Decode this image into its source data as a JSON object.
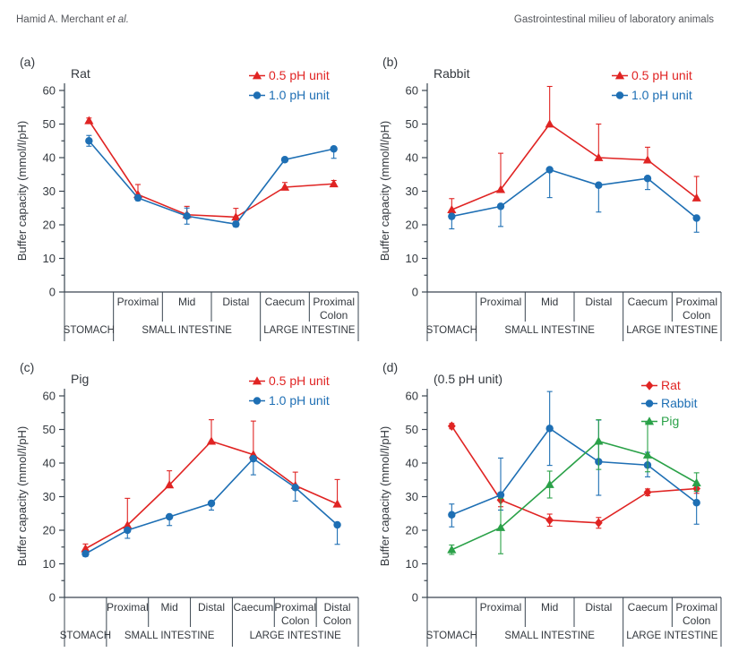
{
  "header": {
    "left_author": "Hamid A. Merchant ",
    "left_etal": "et al.",
    "right": "Gastrointestinal milieu of laboratory animals"
  },
  "colors": {
    "red": "#e02423",
    "blue": "#1e6fb4",
    "green": "#2aa148",
    "axis": "#3a4550",
    "text": "#34393f",
    "header_text": "#55575c"
  },
  "y_axis": {
    "label": "Buffer capacity (mmol/l/pH)",
    "min": 0,
    "max": 60,
    "major_step": 10,
    "minor_step": 5
  },
  "chart_data": [
    {
      "id": "a",
      "letter": "(a)",
      "title": "Rat",
      "type": "line",
      "cell_labels": [
        "",
        "Proximal",
        "Mid",
        "Distal",
        "Caecum",
        "Proximal\nColon"
      ],
      "full_boundaries": [
        0,
        1,
        4,
        6
      ],
      "groups": [
        {
          "label": "STOMACH",
          "from": 0,
          "to": 0
        },
        {
          "label": "SMALL INTESTINE",
          "from": 1,
          "to": 3
        },
        {
          "label": "LARGE INTESTINE",
          "from": 4,
          "to": 5
        }
      ],
      "series": [
        {
          "name": "0.5 pH unit",
          "color": "red",
          "marker": "triangle",
          "values": [
            51,
            29,
            23,
            22.3,
            31.2,
            32.2
          ],
          "err_up": [
            0.8,
            3,
            2.5,
            2.6,
            1.4,
            1
          ],
          "err_down": [
            0.8,
            0,
            0,
            0,
            0,
            0
          ]
        },
        {
          "name": "1.0 pH unit",
          "color": "blue",
          "marker": "circle",
          "values": [
            45,
            28,
            22.6,
            20.2,
            39.4,
            42.6
          ],
          "err_up": [
            1.6,
            0.8,
            2.4,
            0.8,
            0,
            0.5
          ],
          "err_down": [
            1.6,
            0.8,
            2.4,
            0.8,
            0,
            2.8
          ]
        }
      ]
    },
    {
      "id": "b",
      "letter": "(b)",
      "title": "Rabbit",
      "type": "line",
      "cell_labels": [
        "",
        "Proximal",
        "Mid",
        "Distal",
        "Caecum",
        "Proximal\nColon"
      ],
      "full_boundaries": [
        0,
        1,
        4,
        6
      ],
      "groups": [
        {
          "label": "STOMACH",
          "from": 0,
          "to": 0
        },
        {
          "label": "SMALL INTESTINE",
          "from": 1,
          "to": 3
        },
        {
          "label": "LARGE INTESTINE",
          "from": 4,
          "to": 5
        }
      ],
      "series": [
        {
          "name": "0.5 pH unit",
          "color": "red",
          "marker": "triangle",
          "values": [
            24.5,
            30.5,
            50,
            40,
            39.3,
            28
          ],
          "err_up": [
            3.3,
            10.8,
            11.2,
            10,
            3.8,
            6.4
          ],
          "err_down": [
            1,
            0,
            0,
            0,
            0,
            0
          ]
        },
        {
          "name": "1.0 pH unit",
          "color": "blue",
          "marker": "circle",
          "values": [
            22.5,
            25.5,
            36.4,
            31.8,
            33.8,
            22
          ],
          "err_up": [
            0,
            0,
            0,
            0,
            0,
            0
          ],
          "err_down": [
            3.7,
            6,
            8.3,
            8,
            3.3,
            4.2
          ]
        }
      ]
    },
    {
      "id": "c",
      "letter": "(c)",
      "title": "Pig",
      "type": "line",
      "cell_labels": [
        "",
        "Proximal",
        "Mid",
        "Distal",
        "Caecum",
        "Proximal\nColon",
        "Distal\nColon"
      ],
      "full_boundaries": [
        0,
        1,
        4,
        7
      ],
      "groups": [
        {
          "label": "STOMACH",
          "from": 0,
          "to": 0
        },
        {
          "label": "SMALL INTESTINE",
          "from": 1,
          "to": 3
        },
        {
          "label": "LARGE INTESTINE",
          "from": 4,
          "to": 6
        }
      ],
      "series": [
        {
          "name": "0.5 pH unit",
          "color": "red",
          "marker": "triangle",
          "values": [
            14.5,
            21.5,
            33.5,
            46.5,
            42.5,
            33.3,
            27.8
          ],
          "err_up": [
            1.4,
            8,
            4.2,
            6.4,
            10,
            4,
            7.3
          ],
          "err_down": [
            0,
            0,
            0,
            0,
            0,
            0,
            0
          ]
        },
        {
          "name": "1.0 pH unit",
          "color": "blue",
          "marker": "circle",
          "values": [
            13,
            20,
            24,
            28,
            41.3,
            32.7,
            21.6
          ],
          "err_up": [
            0,
            0,
            0,
            0,
            0,
            0,
            0
          ],
          "err_down": [
            0.8,
            2.4,
            2.6,
            2,
            4.8,
            4,
            5.8
          ]
        }
      ]
    },
    {
      "id": "d",
      "letter": "(d)",
      "title": "(0.5 pH unit)",
      "type": "line",
      "cell_labels": [
        "",
        "Proximal",
        "Mid",
        "Distal",
        "Caecum",
        "Proximal\nColon"
      ],
      "full_boundaries": [
        0,
        1,
        4,
        6
      ],
      "groups": [
        {
          "label": "STOMACH",
          "from": 0,
          "to": 0
        },
        {
          "label": "SMALL INTESTINE",
          "from": 1,
          "to": 3
        },
        {
          "label": "LARGE INTESTINE",
          "from": 4,
          "to": 5
        }
      ],
      "series": [
        {
          "name": "Rat",
          "color": "red",
          "marker": "diamond",
          "values": [
            51,
            29,
            23,
            22.2,
            31.3,
            32.4
          ],
          "err_up": [
            0.8,
            2,
            1.8,
            1.6,
            1,
            1.4
          ],
          "err_down": [
            0.8,
            2,
            1.8,
            1.6,
            1,
            1.4
          ]
        },
        {
          "name": "Rabbit",
          "color": "blue",
          "marker": "circle",
          "values": [
            24.6,
            30.5,
            50.3,
            40.4,
            39.4,
            28.2
          ],
          "err_up": [
            3.2,
            11,
            11,
            12.4,
            3.8,
            5
          ],
          "err_down": [
            3.6,
            4.5,
            11,
            10,
            3.5,
            6.4
          ]
        },
        {
          "name": "Pig",
          "color": "green",
          "marker": "triangle",
          "values": [
            14.2,
            20.8,
            33.6,
            46.5,
            42.4,
            34.1
          ],
          "err_up": [
            1.4,
            8.7,
            4,
            6.4,
            9.6,
            3
          ],
          "err_down": [
            1.4,
            7.8,
            4,
            8.4,
            5,
            2.5
          ]
        }
      ]
    }
  ]
}
